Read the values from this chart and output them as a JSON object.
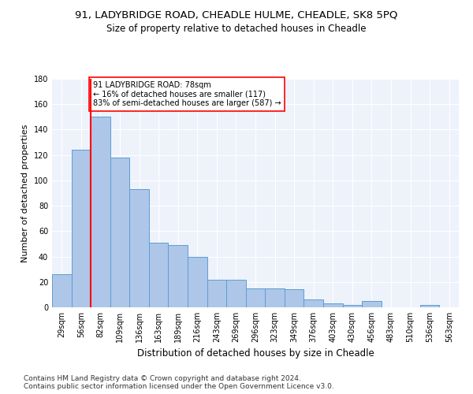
{
  "title1": "91, LADYBRIDGE ROAD, CHEADLE HULME, CHEADLE, SK8 5PQ",
  "title2": "Size of property relative to detached houses in Cheadle",
  "xlabel": "Distribution of detached houses by size in Cheadle",
  "ylabel": "Number of detached properties",
  "categories": [
    "29sqm",
    "56sqm",
    "82sqm",
    "109sqm",
    "136sqm",
    "163sqm",
    "189sqm",
    "216sqm",
    "243sqm",
    "269sqm",
    "296sqm",
    "323sqm",
    "349sqm",
    "376sqm",
    "403sqm",
    "430sqm",
    "456sqm",
    "483sqm",
    "510sqm",
    "536sqm",
    "563sqm"
  ],
  "values": [
    26,
    124,
    150,
    118,
    93,
    51,
    49,
    40,
    22,
    22,
    15,
    15,
    14,
    6,
    3,
    2,
    5,
    0,
    0,
    2,
    0
  ],
  "bar_color": "#aec6e8",
  "bar_edge_color": "#5a9fd4",
  "vline_color": "red",
  "annotation_text": "91 LADYBRIDGE ROAD: 78sqm\n← 16% of detached houses are smaller (117)\n83% of semi-detached houses are larger (587) →",
  "annotation_box_color": "white",
  "annotation_box_edge": "red",
  "ylim": [
    0,
    180
  ],
  "yticks": [
    0,
    20,
    40,
    60,
    80,
    100,
    120,
    140,
    160,
    180
  ],
  "footer": "Contains HM Land Registry data © Crown copyright and database right 2024.\nContains public sector information licensed under the Open Government Licence v3.0.",
  "bg_color": "#eef2fb",
  "title1_fontsize": 9.5,
  "title2_fontsize": 8.5,
  "xlabel_fontsize": 8.5,
  "ylabel_fontsize": 8,
  "footer_fontsize": 6.5,
  "tick_fontsize": 7,
  "annot_fontsize": 7
}
